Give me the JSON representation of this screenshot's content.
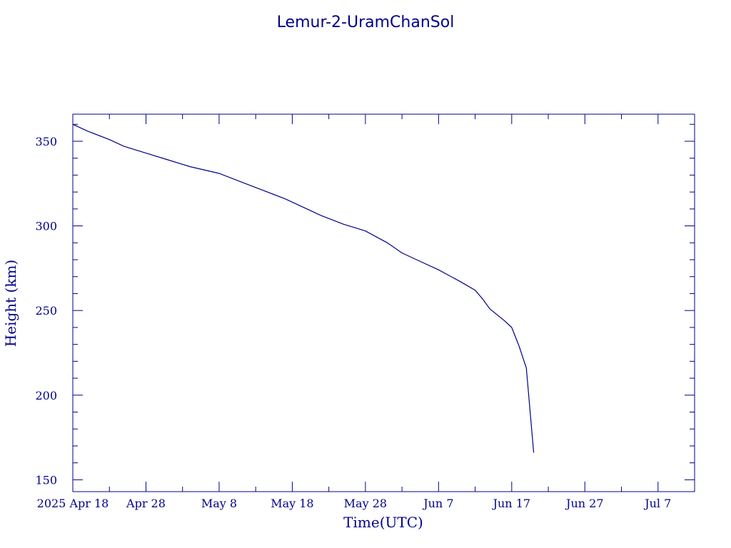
{
  "chart_data": {
    "type": "line",
    "title": "Lemur-2-UramChanSol",
    "xlabel": "Time(UTC)",
    "ylabel": "Height (km)",
    "xlim": [
      "2025-04-18",
      "2025-07-12"
    ],
    "ylim": [
      143,
      366
    ],
    "x_tick_labels": [
      "2025 Apr 18",
      "Apr 28",
      "May  8",
      "May 18",
      "May 28",
      "Jun  7",
      "Jun 17",
      "Jun 27",
      "Jul  7"
    ],
    "x_ticks": [
      "2025-04-18",
      "2025-04-28",
      "2025-05-08",
      "2025-05-18",
      "2025-05-28",
      "2025-06-07",
      "2025-06-17",
      "2025-06-27",
      "2025-07-07"
    ],
    "y_ticks": [
      150,
      200,
      250,
      300,
      350
    ],
    "y_tick_labels": [
      "150",
      "200",
      "250",
      "300",
      "350"
    ],
    "grid": false,
    "series": [
      {
        "x": [
          "2025-04-18",
          "2025-04-20",
          "2025-04-23",
          "2025-04-25",
          "2025-04-28",
          "2025-05-01",
          "2025-05-04",
          "2025-05-08",
          "2025-05-11",
          "2025-05-14",
          "2025-05-17",
          "2025-05-19",
          "2025-05-22",
          "2025-05-25",
          "2025-05-28",
          "2025-05-31",
          "2025-06-02",
          "2025-06-04",
          "2025-06-07",
          "2025-06-10",
          "2025-06-12",
          "2025-06-13",
          "2025-06-14",
          "2025-06-16",
          "2025-06-17",
          "2025-06-18",
          "2025-06-19",
          "2025-06-20"
        ],
        "y": [
          360,
          356,
          351,
          347,
          343,
          339,
          335,
          331,
          326,
          321,
          316,
          312,
          306,
          301,
          297,
          290,
          284,
          280,
          274,
          267,
          262,
          257,
          251,
          244,
          240,
          229,
          216,
          166
        ]
      }
    ]
  }
}
